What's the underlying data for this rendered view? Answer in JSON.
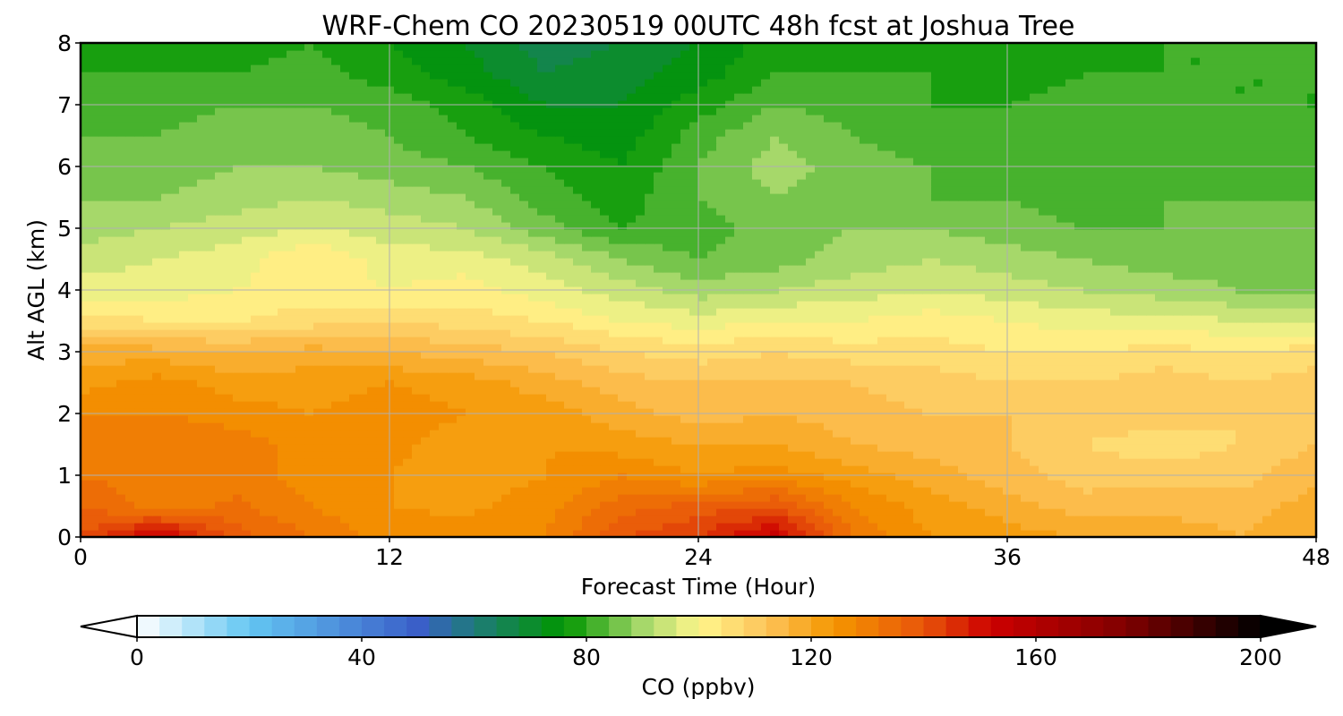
{
  "chart_data": {
    "type": "heatmap",
    "title": "WRF-Chem CO  20230519 00UTC 48h fcst at Joshua Tree",
    "xlabel": "Forecast Time (Hour)",
    "ylabel": "Alt AGL (km)",
    "xlim": [
      0,
      48
    ],
    "ylim": [
      0,
      8
    ],
    "x_ticks": [
      0,
      12,
      24,
      36,
      48
    ],
    "y_ticks": [
      0,
      1,
      2,
      3,
      4,
      5,
      6,
      7,
      8
    ],
    "grid": true,
    "x": [
      0,
      3,
      6,
      9,
      12,
      15,
      18,
      21,
      24,
      27,
      30,
      33,
      36,
      39,
      42,
      45,
      48
    ],
    "y": [
      0,
      0.5,
      1,
      1.5,
      2,
      2.5,
      3,
      3.5,
      4,
      4.5,
      5,
      5.5,
      6,
      6.5,
      7,
      7.5,
      8
    ],
    "z_rows_by_altitude": [
      [
        140,
        155,
        138,
        132,
        126,
        126,
        128,
        140,
        144,
        154,
        132,
        124,
        122,
        120,
        118,
        116,
        118
      ],
      [
        136,
        130,
        133,
        128,
        124,
        123,
        126,
        134,
        138,
        140,
        128,
        122,
        118,
        114,
        115,
        115,
        117
      ],
      [
        132,
        130,
        130,
        126,
        124,
        122,
        124,
        128,
        124,
        126,
        122,
        118,
        114,
        110,
        110,
        110,
        116
      ],
      [
        130,
        132,
        130,
        126,
        125,
        122,
        124,
        122,
        120,
        120,
        116,
        114,
        112,
        108,
        106,
        108,
        112
      ],
      [
        128,
        128,
        126,
        124,
        126,
        124,
        122,
        118,
        114,
        116,
        114,
        112,
        112,
        110,
        110,
        108,
        112
      ],
      [
        122,
        126,
        122,
        122,
        124,
        122,
        118,
        114,
        112,
        112,
        112,
        110,
        108,
        108,
        110,
        108,
        110
      ],
      [
        118,
        118,
        116,
        118,
        116,
        114,
        112,
        108,
        106,
        108,
        106,
        106,
        104,
        104,
        106,
        104,
        106
      ],
      [
        106,
        104,
        104,
        106,
        108,
        106,
        104,
        100,
        98,
        100,
        100,
        102,
        100,
        98,
        98,
        96,
        96
      ],
      [
        98,
        98,
        100,
        102,
        100,
        102,
        98,
        94,
        90,
        92,
        94,
        96,
        94,
        92,
        90,
        88,
        86
      ],
      [
        94,
        96,
        98,
        104,
        98,
        98,
        94,
        88,
        84,
        86,
        90,
        92,
        90,
        88,
        86,
        86,
        84
      ],
      [
        90,
        92,
        94,
        96,
        94,
        92,
        86,
        80,
        82,
        86,
        88,
        88,
        86,
        84,
        84,
        86,
        84
      ],
      [
        88,
        88,
        90,
        92,
        90,
        88,
        82,
        78,
        84,
        88,
        86,
        84,
        84,
        82,
        84,
        84,
        84
      ],
      [
        86,
        86,
        88,
        88,
        86,
        84,
        80,
        76,
        84,
        90,
        86,
        84,
        82,
        82,
        84,
        82,
        84
      ],
      [
        84,
        84,
        86,
        86,
        84,
        80,
        76,
        74,
        82,
        88,
        84,
        82,
        82,
        82,
        82,
        82,
        82
      ],
      [
        82,
        82,
        84,
        84,
        82,
        78,
        72,
        72,
        78,
        84,
        82,
        80,
        80,
        82,
        82,
        80,
        80
      ],
      [
        80,
        80,
        80,
        82,
        78,
        74,
        68,
        70,
        74,
        80,
        80,
        80,
        78,
        80,
        80,
        80,
        80
      ],
      [
        78,
        78,
        78,
        80,
        76,
        72,
        66,
        68,
        72,
        78,
        78,
        78,
        78,
        78,
        80,
        80,
        80
      ]
    ],
    "colorbar": {
      "label": "CO  (ppbv)",
      "min": 0,
      "max": 200,
      "ticks": [
        0,
        40,
        80,
        120,
        160,
        200
      ],
      "extend": "both",
      "orientation": "horizontal",
      "colormap_stops": [
        {
          "value": 0,
          "color": "#ffffff"
        },
        {
          "value": 20,
          "color": "#63c6f2"
        },
        {
          "value": 50,
          "color": "#3a5fc8"
        },
        {
          "value": 60,
          "color": "#1f7a7a"
        },
        {
          "value": 76,
          "color": "#009600"
        },
        {
          "value": 90,
          "color": "#a6d86a"
        },
        {
          "value": 100,
          "color": "#fff68c"
        },
        {
          "value": 112,
          "color": "#fdc35a"
        },
        {
          "value": 124,
          "color": "#f59600"
        },
        {
          "value": 140,
          "color": "#e8550a"
        },
        {
          "value": 152,
          "color": "#cc0000"
        },
        {
          "value": 176,
          "color": "#800000"
        },
        {
          "value": 200,
          "color": "#000000"
        }
      ]
    }
  }
}
